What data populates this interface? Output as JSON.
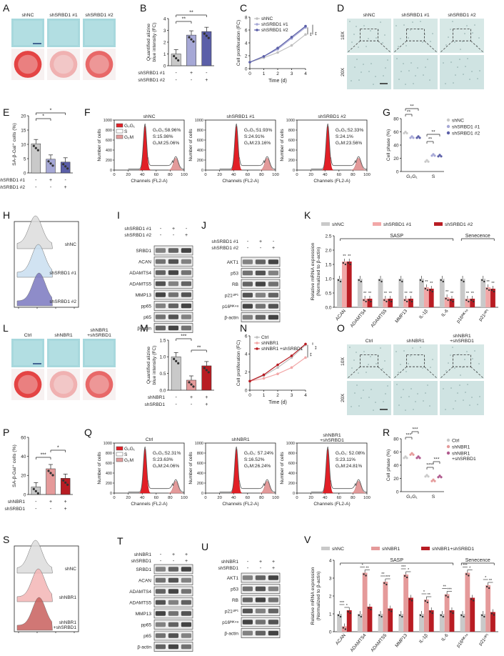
{
  "panels": {
    "A": {
      "letter": "A",
      "cols": [
        "shNC",
        "shSRBD1 #1",
        "shSRBD1 #2"
      ]
    },
    "B": {
      "letter": "B",
      "ylabel": "Quantified alizine blue intensity (FC)",
      "yticks": [
        "0",
        "1",
        "2",
        "3",
        "4"
      ],
      "rows": [
        {
          "label": "shSRBD1 #1",
          "signs": [
            "-",
            "+",
            "-"
          ]
        },
        {
          "label": "shSRBD1 #2",
          "signs": [
            "-",
            "-",
            "+"
          ]
        }
      ],
      "sig": [
        "**",
        "**"
      ],
      "chart_data": {
        "type": "bar",
        "categories": [
          "shNC",
          "shSRBD1 #1",
          "shSRBD1 #2"
        ],
        "values": [
          1.0,
          2.6,
          2.9
        ],
        "ylim": [
          0,
          4
        ],
        "colors": [
          "#c9c9c9",
          "#a6a8d6",
          "#5b5fa8"
        ]
      }
    },
    "C": {
      "letter": "C",
      "ylabel": "Cell proliferation (FC)",
      "xlabel": "Time (d)",
      "yticks": [
        "0",
        "2",
        "4",
        "6",
        "8"
      ],
      "xticks": [
        "0",
        "1",
        "2",
        "3",
        "4"
      ],
      "sig": [
        "**",
        "**"
      ],
      "chart_data": {
        "type": "line",
        "x": [
          0,
          1,
          2,
          3,
          4
        ],
        "xlim": [
          0,
          4
        ],
        "ylim": [
          0,
          8
        ],
        "series": [
          {
            "name": "shNC",
            "values": [
              1.0,
              1.7,
              2.5,
              3.6,
              5.3
            ],
            "color": "#bfbfbf"
          },
          {
            "name": "shSRBD1 #1",
            "values": [
              1.0,
              1.9,
              3.0,
              4.7,
              6.4
            ],
            "color": "#a6a8d6"
          },
          {
            "name": "shSRBD1 #2",
            "values": [
              1.0,
              1.9,
              3.2,
              4.9,
              6.6
            ],
            "color": "#5b5fa8"
          }
        ]
      }
    },
    "D": {
      "letter": "D",
      "cols": [
        "shNC",
        "shSRBD1 #1",
        "shSRBD1 #2"
      ],
      "rows": [
        "10X",
        "20X"
      ]
    },
    "E": {
      "letter": "E",
      "ylabel": "SA-β-Gal⁺ cells (%)",
      "yticks": [
        "0",
        "5",
        "10",
        "15",
        "20"
      ],
      "rows": [
        {
          "label": "shSRBD1 #1",
          "signs": [
            "-",
            "+",
            "-"
          ]
        },
        {
          "label": "shSRBD1 #2",
          "signs": [
            "-",
            "-",
            "+"
          ]
        }
      ],
      "sig": [
        "*",
        "*"
      ],
      "chart_data": {
        "type": "bar",
        "categories": [
          "shNC",
          "shSRBD1 #1",
          "shSRBD1 #2"
        ],
        "values": [
          10.2,
          4.8,
          3.8
        ],
        "ylim": [
          0,
          20
        ],
        "colors": [
          "#c9c9c9",
          "#a6a8d6",
          "#5b5fa8"
        ]
      }
    },
    "F": {
      "letter": "F",
      "legend": [
        "G₀G₁",
        "S",
        "G₂M"
      ],
      "ylabel": "Number of cells",
      "xlabel": "Channels (FL2-A)",
      "xticks": [
        "0",
        "20",
        "40",
        "60",
        "80",
        "100"
      ],
      "yticks": [
        "0",
        "200",
        "400",
        "600",
        "800",
        "1000"
      ],
      "plots": [
        {
          "title": "shNC",
          "g0g1": "G₀G₁:58.96%",
          "s": "S:15.98%",
          "g2m": "G₂M:25.06%"
        },
        {
          "title": "shSRBD1 #1",
          "g0g1": "G₀G₁:51.93%",
          "s": "S:24.91%",
          "g2m": "G₂M:23.16%"
        },
        {
          "title": "shSRBD1 #2",
          "g0g1": "G₀G₁:52.33%",
          "s": "S:24.1%",
          "g2m": "G₂M:23.56%"
        }
      ]
    },
    "G": {
      "letter": "G",
      "ylabel": "Cell phase (%)",
      "yticks": [
        "0",
        "20",
        "40",
        "60",
        "80"
      ],
      "groups": [
        "G₀G₁",
        "S"
      ],
      "legend": [
        "shNC",
        "shSRBD1 #1",
        "shSRBD1 #2"
      ],
      "sig": [
        "**",
        "**",
        "**",
        "**"
      ],
      "chart_data": {
        "type": "scatter",
        "categories": [
          "G₀G₁",
          "S"
        ],
        "ylim": [
          0,
          80
        ],
        "series": [
          {
            "name": "shNC",
            "values": [
              59,
              16
            ],
            "color": "#c9c9c9"
          },
          {
            "name": "shSRBD1 #1",
            "values": [
              52,
              25
            ],
            "color": "#a6a8d6"
          },
          {
            "name": "shSRBD1 #2",
            "values": [
              52,
              24
            ],
            "color": "#5b5fa8"
          }
        ]
      }
    },
    "H": {
      "letter": "H",
      "labels": [
        "shNC",
        "shSRBD1 #1",
        "shSRBD1 #2"
      ]
    },
    "I": {
      "letter": "I",
      "cond": [
        {
          "label": "shSRBD1 #1",
          "signs": [
            "-",
            "+",
            "-"
          ]
        },
        {
          "label": "shSRBD1 #2",
          "signs": [
            "-",
            "-",
            "+"
          ]
        }
      ],
      "bands": [
        "SRBD1",
        "ACAN",
        "ADAMTS4",
        "ADAMTS5",
        "MMP13",
        "pp65",
        "p65",
        "β-actin"
      ]
    },
    "J": {
      "letter": "J",
      "cond": [
        {
          "label": "shSRBD1 #1",
          "signs": [
            "-",
            "+",
            "-"
          ]
        },
        {
          "label": "shSRBD1 #2",
          "signs": [
            "-",
            "-",
            "+"
          ]
        }
      ],
      "bands": [
        "AKT1",
        "p53",
        "RB",
        "p21ᶜᴵᴾ¹",
        "p16ᴵᴺᴷ⁴ᵃ",
        "β-actin"
      ]
    },
    "K": {
      "letter": "K",
      "legend": [
        "shNC",
        "shSRBD1 #1",
        "shSRBD1 #2"
      ],
      "ylabel": "Relative mRNA expression (Normalized to β-actin)",
      "yticks": [
        "0.0",
        "0.5",
        "1.0",
        "1.5",
        "2.0",
        "2.5"
      ],
      "brackets": [
        "SASP",
        "Senecence"
      ],
      "star_label": "**",
      "chart_data": {
        "type": "bar",
        "categories": [
          "ACAN",
          "ADAMTS4",
          "ADAMTS5",
          "MMP13",
          "IL-1β",
          "IL-6",
          "p16ᴵᴺᴷ⁴ᵃ",
          "p21ᶜᴵᴾ¹"
        ],
        "ylim": [
          0,
          2.5
        ],
        "series": [
          {
            "name": "shNC",
            "values": [
              1.0,
              1.0,
              1.0,
              1.0,
              1.0,
              1.0,
              1.0,
              1.0
            ],
            "color": "#c9c9c9"
          },
          {
            "name": "shSRBD1 #1",
            "values": [
              1.6,
              0.3,
              0.3,
              0.3,
              0.7,
              0.35,
              0.3,
              0.7
            ],
            "color": "#f2a7a7"
          },
          {
            "name": "shSRBD1 #2",
            "values": [
              1.6,
              0.3,
              0.3,
              0.3,
              0.65,
              0.3,
              0.3,
              0.65
            ],
            "color": "#b81c23"
          }
        ]
      }
    },
    "L": {
      "letter": "L",
      "cols": [
        "Ctrl",
        "shNBR1",
        "shNBR1 +shSRBD1"
      ]
    },
    "M": {
      "letter": "M",
      "ylabel": "Quantified alizine blue intensity (FC)",
      "yticks": [
        "0.0",
        "0.5",
        "1.0",
        "1.5"
      ],
      "rows": [
        {
          "label": "shNBR1",
          "signs": [
            "-",
            "+",
            "+"
          ]
        },
        {
          "label": "shSRBD1",
          "signs": [
            "-",
            "-",
            "+"
          ]
        }
      ],
      "sig": [
        "***",
        "**"
      ],
      "chart_data": {
        "type": "bar",
        "categories": [
          "Ctrl",
          "shNBR1",
          "shNBR1+shSRBD1"
        ],
        "values": [
          1.0,
          0.3,
          0.73
        ],
        "ylim": [
          0,
          1.5
        ],
        "colors": [
          "#c9c9c9",
          "#e59a9a",
          "#b81c23"
        ]
      }
    },
    "N": {
      "letter": "N",
      "ylabel": "Cell proliferation (FC)",
      "xlabel": "Time (d)",
      "yticks": [
        "0",
        "2",
        "4",
        "6"
      ],
      "xticks": [
        "0",
        "1",
        "2",
        "3",
        "4"
      ],
      "sig": [
        "**",
        "**"
      ],
      "chart_data": {
        "type": "line",
        "x": [
          0,
          1,
          2,
          3,
          4
        ],
        "xlim": [
          0,
          4
        ],
        "ylim": [
          0,
          6
        ],
        "series": [
          {
            "name": "Ctrl",
            "values": [
              1.0,
              1.6,
              2.5,
              3.6,
              5.0
            ],
            "color": "#bfbfbf"
          },
          {
            "name": "shNBR1",
            "values": [
              1.0,
              1.3,
              1.8,
              2.5,
              3.6
            ],
            "color": "#f2a7a7"
          },
          {
            "name": "shNBR1 +shSRBD1",
            "values": [
              1.0,
              1.7,
              2.8,
              3.8,
              5.1
            ],
            "color": "#b81c23"
          }
        ]
      }
    },
    "O": {
      "letter": "O",
      "cols": [
        "Ctrl",
        "shNBR1",
        "shNBR1 +shSRBD1"
      ],
      "rows": [
        "10X",
        "20X"
      ]
    },
    "P": {
      "letter": "P",
      "ylabel": "SA-β-Gal⁺ cells (%)",
      "yticks": [
        "0",
        "20",
        "40",
        "60"
      ],
      "rows": [
        {
          "label": "shNBR1",
          "signs": [
            "-",
            "+",
            "+"
          ]
        },
        {
          "label": "shSRBD1",
          "signs": [
            "-",
            "-",
            "+"
          ]
        }
      ],
      "sig": [
        "***",
        "*"
      ],
      "chart_data": {
        "type": "bar",
        "categories": [
          "Ctrl",
          "shNBR1",
          "shNBR1+shSRBD1"
        ],
        "values": [
          8,
          27,
          17
        ],
        "ylim": [
          0,
          60
        ],
        "colors": [
          "#c9c9c9",
          "#e59a9a",
          "#b81c23"
        ]
      }
    },
    "Q": {
      "letter": "Q",
      "legend": [
        "G₀G₁",
        "S",
        "G₂M"
      ],
      "ylabel": "Number of cells",
      "xlabel": "Channels (FL2-A)",
      "xticks": [
        "0",
        "20",
        "40",
        "60",
        "80",
        "100"
      ],
      "yticks": [
        "0",
        "200",
        "400",
        "600",
        "800",
        "1000"
      ],
      "plots": [
        {
          "title": "Ctrl",
          "g0g1": "G₀G₁:52.31%",
          "s": "S:23.63%",
          "g2m": "G₂M:24.06%"
        },
        {
          "title": "shNBR1",
          "g0g1": "G₀G₁: 57.24%",
          "s": "S:16.52%",
          "g2m": "G₂M:26.24%"
        },
        {
          "title": "shNBR1 +shSRBD1",
          "g0g1": "G₀G₁: 52.08%",
          "s": "S:23.11%",
          "g2m": "G₂M:24.81%"
        }
      ]
    },
    "R": {
      "letter": "R",
      "ylabel": "Cell phase (%)",
      "yticks": [
        "0",
        "20",
        "40",
        "60",
        "80"
      ],
      "groups": [
        "G₀G₁",
        "S"
      ],
      "legend": [
        "Ctrl",
        "shNBR1",
        "shNBR1 +shSRBD1"
      ],
      "sig": [
        "***",
        "***",
        "****",
        "***"
      ],
      "chart_data": {
        "type": "scatter",
        "categories": [
          "G₀G₁",
          "S"
        ],
        "ylim": [
          0,
          80
        ],
        "series": [
          {
            "name": "Ctrl",
            "values": [
              52,
              24
            ],
            "color": "#c9c9c9"
          },
          {
            "name": "shNBR1",
            "values": [
              57,
              17
            ],
            "color": "#e59a9a"
          },
          {
            "name": "shNBR1 +shSRBD1",
            "values": [
              52,
              23
            ],
            "color": "#b05a8e"
          }
        ]
      }
    },
    "S": {
      "letter": "S",
      "labels": [
        "shNC",
        "shNBR1",
        "shNBR1 +shSRBD1"
      ]
    },
    "T": {
      "letter": "T",
      "cond": [
        {
          "label": "shNBR1",
          "signs": [
            "-",
            "+",
            "+"
          ]
        },
        {
          "label": "shSRBD1",
          "signs": [
            "-",
            "-",
            "+"
          ]
        }
      ],
      "bands": [
        "SRBD1",
        "ACAN",
        "ADAMTS4",
        "ADAMTS5",
        "MMP13",
        "pp65",
        "p65",
        "β-actin"
      ]
    },
    "U": {
      "letter": "U",
      "cond": [
        {
          "label": "shNBR1",
          "signs": [
            "-",
            "+",
            "+"
          ]
        },
        {
          "label": "shSRBD1",
          "signs": [
            "-",
            "-",
            "+"
          ]
        }
      ],
      "bands": [
        "AKT1",
        "p53",
        "RB",
        "p21ᶜᴵᴾ¹",
        "p16ᴵᴺᴷ⁴ᵃ",
        "β-actin"
      ]
    },
    "V": {
      "letter": "V",
      "legend": [
        "shNC",
        "shNBR1",
        "shNBR1+shSRBD1"
      ],
      "ylabel": "Relative mRNA expression (Normalized to β-actin)",
      "yticks": [
        "0",
        "1",
        "2",
        "3",
        "4"
      ],
      "brackets": [
        "SASP",
        "Senecence"
      ],
      "star_labels": [
        "***",
        "*",
        "**"
      ],
      "chart_data": {
        "type": "bar",
        "categories": [
          "ACAN",
          "ADAMTS4",
          "ADAMTS5",
          "MMP13",
          "IL-1β",
          "IL-6",
          "p16ᴵᴺᴷ⁴ᵃ",
          "p21ᶜᴵᴾ¹"
        ],
        "ylim": [
          0,
          4
        ],
        "series": [
          {
            "name": "shNC",
            "values": [
              1.0,
              1.0,
              1.0,
              1.0,
              1.0,
              1.0,
              1.0,
              1.0
            ],
            "color": "#c9c9c9"
          },
          {
            "name": "shNBR1",
            "values": [
              0.3,
              3.3,
              2.8,
              3.2,
              1.8,
              2.1,
              3.3,
              2.6
            ],
            "color": "#e59a9a"
          },
          {
            "name": "shNBR1+shSRBD1",
            "values": [
              1.2,
              1.4,
              1.3,
              1.9,
              1.2,
              1.2,
              1.9,
              1.1
            ],
            "color": "#b81c23"
          }
        ]
      }
    }
  }
}
